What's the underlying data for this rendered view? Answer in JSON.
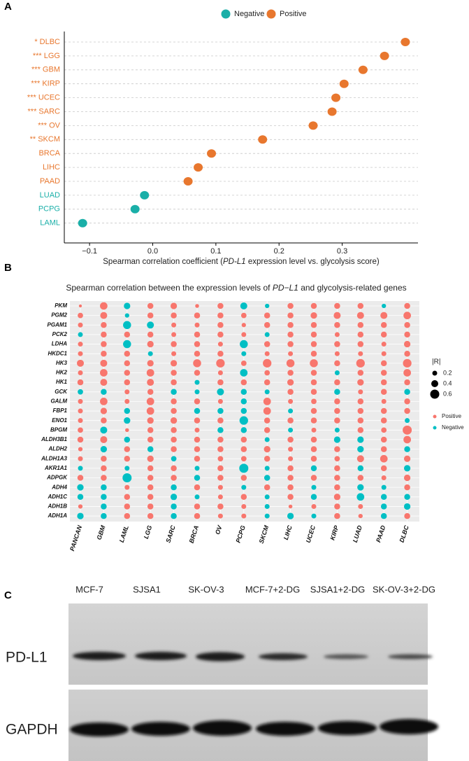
{
  "panel_labels": [
    "A",
    "B",
    "C"
  ],
  "chart_data": [
    {
      "type": "dot",
      "legend": [
        {
          "name": "Negative",
          "color": "#1AAFA8"
        },
        {
          "name": "Positive",
          "color": "#E8772E"
        }
      ],
      "categories": [
        "* DLBC",
        "*** LGG",
        "*** GBM",
        "*** KIRP",
        "*** UCEC",
        "*** SARC",
        "*** OV",
        "** SKCM",
        "BRCA",
        "LIHC",
        "PAAD",
        "LUAD",
        "PCPG",
        "LAML"
      ],
      "values": [
        0.4,
        0.367,
        0.333,
        0.303,
        0.29,
        0.284,
        0.254,
        0.174,
        0.093,
        0.072,
        0.056,
        -0.013,
        -0.028,
        -0.111
      ],
      "xlabel_parts": [
        "Spearman correlation coefficient (",
        "PD-L1",
        " expression level vs. glycolysis score)"
      ],
      "xlim": [
        -0.14,
        0.42
      ],
      "xticks": [
        {
          "value": -0.1,
          "label": "−0.1"
        },
        {
          "value": 0,
          "label": "0.0"
        },
        0.1,
        0.2,
        0.3
      ],
      "grid": true
    },
    {
      "type": "bubble",
      "title_parts": [
        "Spearman correlation between the expression levels of ",
        "PD−L1",
        " and glycolysis-related genes"
      ],
      "columns": [
        "PANCAN",
        "GBM",
        "LAML",
        "LGG",
        "SARC",
        "BRCA",
        "OV",
        "PCPG",
        "SKCM",
        "LIHC",
        "UCEC",
        "KIRP",
        "LUAD",
        "PAAD",
        "DLBC"
      ],
      "rows": [
        "PKM",
        "PGM2",
        "PGAM1",
        "PCK2",
        "LDHA",
        "HKDC1",
        "HK3",
        "HK2",
        "HK1",
        "GCK",
        "GALM",
        "FBP1",
        "ENO1",
        "BPGM",
        "ALDH3B1",
        "ALDH2",
        "ALDH1A3",
        "AKR1A1",
        "ADPGK",
        "ADH4",
        "ADH1C",
        "ADH1B",
        "ADH1A"
      ],
      "values": [
        [
          0.02,
          0.45,
          -0.35,
          0.3,
          0.35,
          0.1,
          0.3,
          -0.4,
          -0.15,
          0.3,
          0.3,
          0.3,
          0.3,
          -0.15,
          0.3
        ],
        [
          0.25,
          0.4,
          -0.15,
          0.3,
          0.3,
          0.3,
          0.3,
          0.25,
          0.3,
          0.3,
          0.35,
          0.4,
          0.4,
          0.4,
          0.45
        ],
        [
          0.2,
          0.3,
          -0.5,
          -0.4,
          0.2,
          0.2,
          0.3,
          0.15,
          0.3,
          0.3,
          0.3,
          0.3,
          0.3,
          0.3,
          0.3
        ],
        [
          -0.2,
          0.3,
          0.3,
          0.3,
          0.2,
          0.3,
          0.3,
          0.2,
          -0.2,
          0.3,
          0.3,
          0.2,
          0.3,
          0.3,
          0.3
        ],
        [
          0.2,
          0.3,
          -0.5,
          0.35,
          0.3,
          0.3,
          0.2,
          -0.5,
          0.3,
          0.3,
          0.3,
          0.3,
          0.3,
          0.2,
          0.35
        ],
        [
          0.2,
          0.3,
          0.3,
          -0.2,
          0.2,
          0.3,
          0.3,
          -0.2,
          0.2,
          0.2,
          0.3,
          0.2,
          0.2,
          0.2,
          0.3
        ],
        [
          0.4,
          0.4,
          0.3,
          0.35,
          0.35,
          0.5,
          0.55,
          0.25,
          0.55,
          0.5,
          0.5,
          0.3,
          0.55,
          0.3,
          0.55
        ],
        [
          0.2,
          0.45,
          0.3,
          0.45,
          0.3,
          0.3,
          0.2,
          -0.45,
          0.25,
          0.3,
          0.3,
          -0.2,
          0.3,
          0.3,
          0.45
        ],
        [
          0.3,
          0.4,
          0.3,
          0.4,
          0.3,
          -0.2,
          0.3,
          0.3,
          0.3,
          0.35,
          0.3,
          0.3,
          0.35,
          0.3,
          0.3
        ],
        [
          -0.25,
          -0.3,
          0.2,
          0.3,
          -0.3,
          -0.2,
          -0.4,
          -0.3,
          -0.2,
          0.3,
          0.3,
          -0.3,
          0.2,
          0.3,
          -0.3
        ],
        [
          0.2,
          0.45,
          0.2,
          0.45,
          0.3,
          0.3,
          0.2,
          -0.3,
          0.45,
          0.2,
          0.25,
          0.3,
          0.3,
          0.2,
          0.3
        ],
        [
          0.2,
          0.35,
          -0.3,
          0.45,
          0.3,
          -0.3,
          -0.3,
          -0.3,
          0.45,
          -0.2,
          0.3,
          0.3,
          0.3,
          0.3,
          0.3
        ],
        [
          0.2,
          0.3,
          -0.35,
          0.35,
          0.35,
          0.3,
          0.3,
          -0.55,
          0.3,
          0.3,
          0.3,
          0.3,
          0.3,
          0.3,
          -0.2
        ],
        [
          0.25,
          -0.4,
          0.1,
          0.3,
          0.3,
          0.2,
          -0.3,
          -0.3,
          0.3,
          -0.2,
          0.2,
          -0.2,
          0.3,
          0.25,
          0.6
        ],
        [
          0.3,
          0.4,
          -0.3,
          0.3,
          0.3,
          0.3,
          0.3,
          0.3,
          -0.2,
          0.3,
          0.3,
          -0.35,
          -0.35,
          0.3,
          0.45
        ],
        [
          0.15,
          -0.35,
          0.3,
          -0.3,
          0.3,
          0.3,
          0.3,
          0.3,
          0.35,
          0.2,
          0.3,
          0.3,
          -0.35,
          0.3,
          -0.3
        ],
        [
          0.2,
          0.3,
          0.3,
          0.35,
          -0.25,
          0.3,
          0.25,
          0.25,
          0.3,
          0.2,
          0.3,
          0.25,
          0.4,
          0.45,
          0.35
        ],
        [
          -0.2,
          0.3,
          -0.2,
          0.3,
          0.3,
          -0.2,
          0.3,
          -0.6,
          -0.2,
          0.3,
          -0.3,
          0.3,
          -0.3,
          0.3,
          -0.35
        ],
        [
          0.3,
          0.3,
          -0.6,
          0.3,
          0.3,
          -0.3,
          0.3,
          0.3,
          -0.3,
          0.3,
          0.3,
          0.3,
          0.3,
          0.2,
          0.35
        ],
        [
          -0.35,
          -0.3,
          0.2,
          0.3,
          -0.3,
          0.3,
          0.2,
          -0.2,
          0.3,
          0.3,
          -0.2,
          0.3,
          -0.35,
          -0.2,
          0.3
        ],
        [
          -0.3,
          -0.3,
          0.3,
          0.3,
          -0.35,
          -0.2,
          0.2,
          0.3,
          -0.2,
          0.3,
          -0.3,
          0.35,
          -0.45,
          -0.3,
          -0.3
        ],
        [
          0.15,
          -0.3,
          0.3,
          0.3,
          -0.3,
          0.3,
          0.3,
          0.2,
          -0.2,
          0.1,
          0.2,
          0.3,
          0.2,
          -0.3,
          -0.35
        ],
        [
          -0.35,
          -0.3,
          0.3,
          0.3,
          -0.3,
          0.3,
          0.2,
          0.2,
          -0.2,
          -0.35,
          -0.2,
          0.3,
          0.15,
          -0.3,
          0.3
        ]
      ],
      "size_legend": {
        "title": "|R|",
        "values": [
          0.2,
          0.4,
          0.6
        ]
      },
      "legend": [
        {
          "name": "Positive",
          "color": "#F8766D"
        },
        {
          "name": "Negative",
          "color": "#00BFC4"
        }
      ]
    }
  ],
  "blot": {
    "lanes": [
      "MCF-7",
      "SJSA1",
      "SK-OV-3",
      "MCF-7+2-DG",
      "SJSA1+2-DG",
      "SK-OV-3+2-DG"
    ],
    "rows": [
      "PD-L1",
      "GAPDH"
    ]
  }
}
